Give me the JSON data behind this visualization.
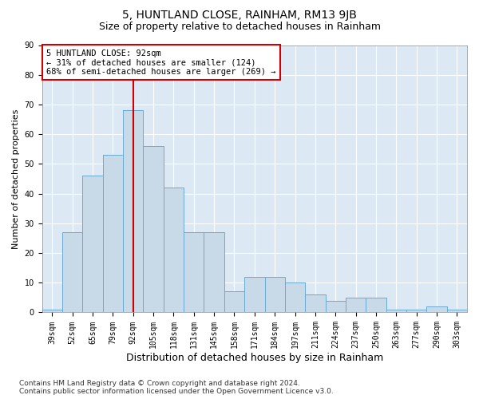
{
  "title": "5, HUNTLAND CLOSE, RAINHAM, RM13 9JB",
  "subtitle": "Size of property relative to detached houses in Rainham",
  "xlabel": "Distribution of detached houses by size in Rainham",
  "ylabel": "Number of detached properties",
  "categories": [
    "39sqm",
    "52sqm",
    "65sqm",
    "79sqm",
    "92sqm",
    "105sqm",
    "118sqm",
    "131sqm",
    "145sqm",
    "158sqm",
    "171sqm",
    "184sqm",
    "197sqm",
    "211sqm",
    "224sqm",
    "237sqm",
    "250sqm",
    "263sqm",
    "277sqm",
    "290sqm",
    "303sqm"
  ],
  "values": [
    1,
    27,
    46,
    53,
    68,
    56,
    42,
    27,
    27,
    7,
    12,
    12,
    10,
    6,
    4,
    5,
    5,
    1,
    1,
    2,
    1
  ],
  "bar_color": "#c8d9e8",
  "bar_edge_color": "#6aaad4",
  "vline_x": 4,
  "vline_color": "#cc0000",
  "annotation_text": "5 HUNTLAND CLOSE: 92sqm\n← 31% of detached houses are smaller (124)\n68% of semi-detached houses are larger (269) →",
  "annotation_box_facecolor": "#ffffff",
  "annotation_box_edgecolor": "#cc0000",
  "ylim": [
    0,
    90
  ],
  "yticks": [
    0,
    10,
    20,
    30,
    40,
    50,
    60,
    70,
    80,
    90
  ],
  "fig_bg_color": "#ffffff",
  "plot_bg_color": "#dce9f5",
  "grid_color": "#ffffff",
  "title_fontsize": 10,
  "subtitle_fontsize": 9,
  "tick_fontsize": 7,
  "ylabel_fontsize": 8,
  "xlabel_fontsize": 9,
  "footer_fontsize": 6.5,
  "annotation_fontsize": 7.5,
  "footer_line1": "Contains HM Land Registry data © Crown copyright and database right 2024.",
  "footer_line2": "Contains public sector information licensed under the Open Government Licence v3.0."
}
